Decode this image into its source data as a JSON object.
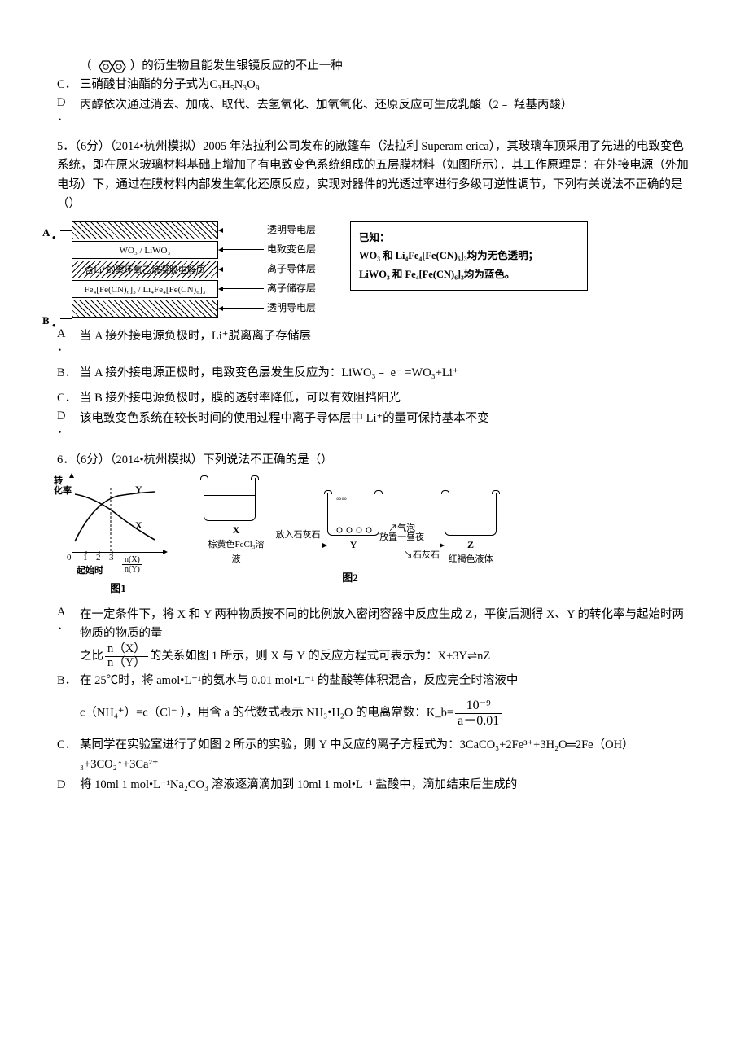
{
  "q4": {
    "optB_tail": "）的衍生物且能发生银镜反应的不止一种",
    "optC": "三硝酸甘油酯的分子式为C₃H₅N₃O₉",
    "optD": "丙醇依次通过消去、加成、取代、去氢氧化、加氧氧化、还原反应可生成乳酸（2﹣ 羟基丙酸）"
  },
  "q5": {
    "stem": "5．（6分）（2014•杭州模拟）2005 年法拉利公司发布的敞篷车（法拉利 Superam erica），其玻璃车顶采用了先进的电致变色系统，即在原来玻璃材料基础上增加了有电致变色系统组成的五层膜材料（如图所示）．其工作原理是：在外接电源（外加电场）下，通过在膜材料内部发生氧化还原反应，实现对器件的光透过率进行多级可逆性调节，下列有关说法不正确的是（）",
    "diagram": {
      "terminalA": "A",
      "terminalB": "B",
      "layers": [
        {
          "text": "",
          "label": "透明导电层",
          "hatch": "hatch"
        },
        {
          "text": "WO₃ / LiWO₃",
          "label": "电致变色层",
          "hatch": ""
        },
        {
          "text": "含Li⁺的聚环氧乙烷凝胶电解质",
          "label": "离子导体层",
          "hatch": "hatch-r"
        },
        {
          "text": "Fe₄[Fe(CN)₆]₃ / Li₄Fe₄[Fe(CN)₆]₃",
          "label": "离子储存层",
          "hatch": ""
        },
        {
          "text": "",
          "label": "透明导电层",
          "hatch": "hatch"
        }
      ],
      "known": {
        "title": "已知：",
        "line1": "WO₃ 和 Li₄Fe₄[Fe(CN)₆]₃均为无色透明；",
        "line2": "LiWO₃ 和 Fe₄[Fe(CN)₆]₃均为蓝色。"
      }
    },
    "optA": "当 A 接外接电源负极时，Li⁺脱离离子存储层",
    "optB": "当 A 接外接电源正极时，电致变色层发生反应为：LiWO₃﹣ e⁻ =WO₃+Li⁺",
    "optC": "当 B 接外接电源负极时，膜的透射率降低，可以有效阻挡阳光",
    "optD": "该电致变色系统在较长时间的使用过程中离子导体层中 Li⁺的量可保持基本不变"
  },
  "q6": {
    "stem": "6．（6分）（2014•杭州模拟）下列说法不正确的是（）",
    "fig1": {
      "y_title_top": "转",
      "y_title_bot": "化率",
      "ticks": [
        "0",
        "1",
        "2",
        "3"
      ],
      "x_frac_num": "n(X)",
      "x_frac_den": "n(Y)",
      "labelX": "X",
      "labelY": "Y",
      "start_label": "起始时",
      "caption": "图1",
      "colors": {
        "axis": "#000000",
        "curve": "#000000"
      }
    },
    "fig2": {
      "beakerX": {
        "name": "X",
        "caption": "棕黄色FeCl₃溶液",
        "liquid_color": "#fafafa",
        "liquid_h": 30
      },
      "beakerY": {
        "name": "Y",
        "caption": "",
        "liquid_color": "#fafafa",
        "liquid_h": 30
      },
      "beakerZ": {
        "name": "Z",
        "caption": "红褐色液体",
        "liquid_color": "#fafafa",
        "liquid_h": 30
      },
      "arrow1_top": "放入石灰石",
      "arrow2_top_a": "气泡",
      "arrow2_top_b": "放置一昼夜",
      "arrow2_bot": "石灰石",
      "caption": "图2"
    },
    "optA_1": "在一定条件下，将 X 和 Y 两种物质按不同的比例放入密闭容器中反应生成 Z，平衡后测得 X、Y 的转化率与起始时两物质的物质的量",
    "optA_2a": "之比",
    "optA_frac_num": "n（X）",
    "optA_frac_den": "n（Y）",
    "optA_2b": "的关系如图 1 所示，则 X 与 Y 的反应方程式可表示为：X+3Y⇌nZ",
    "optB_1": "在 25℃时，将 amol•L⁻¹的氨水与 0.01 mol•L⁻¹ 的盐酸等体积混合，反应完全时溶液中",
    "optB_2": "c（NH₄⁺）=c（Cl⁻ ），用含 a 的代数式表示 NH₃•H₂O 的电离常数：K_b=",
    "optB_frac_num": "10⁻⁹",
    "optB_frac_den": "a－0.01",
    "optC": "某同学在实验室进行了如图 2 所示的实验，则 Y 中反应的离子方程式为：3CaCO₃+2Fe³⁺+3H₂O═2Fe（OH）₃+3CO₂↑+3Ca²⁺",
    "optD": "将 10ml 1 mol•L⁻¹Na₂CO₃ 溶液逐滴滴加到 10ml 1 mol•L⁻¹ 盐酸中，滴加结束后生成的"
  },
  "letters": {
    "A": "A",
    "B": "B．",
    "C": "C．",
    "D": "D",
    "Adot": "A．"
  }
}
